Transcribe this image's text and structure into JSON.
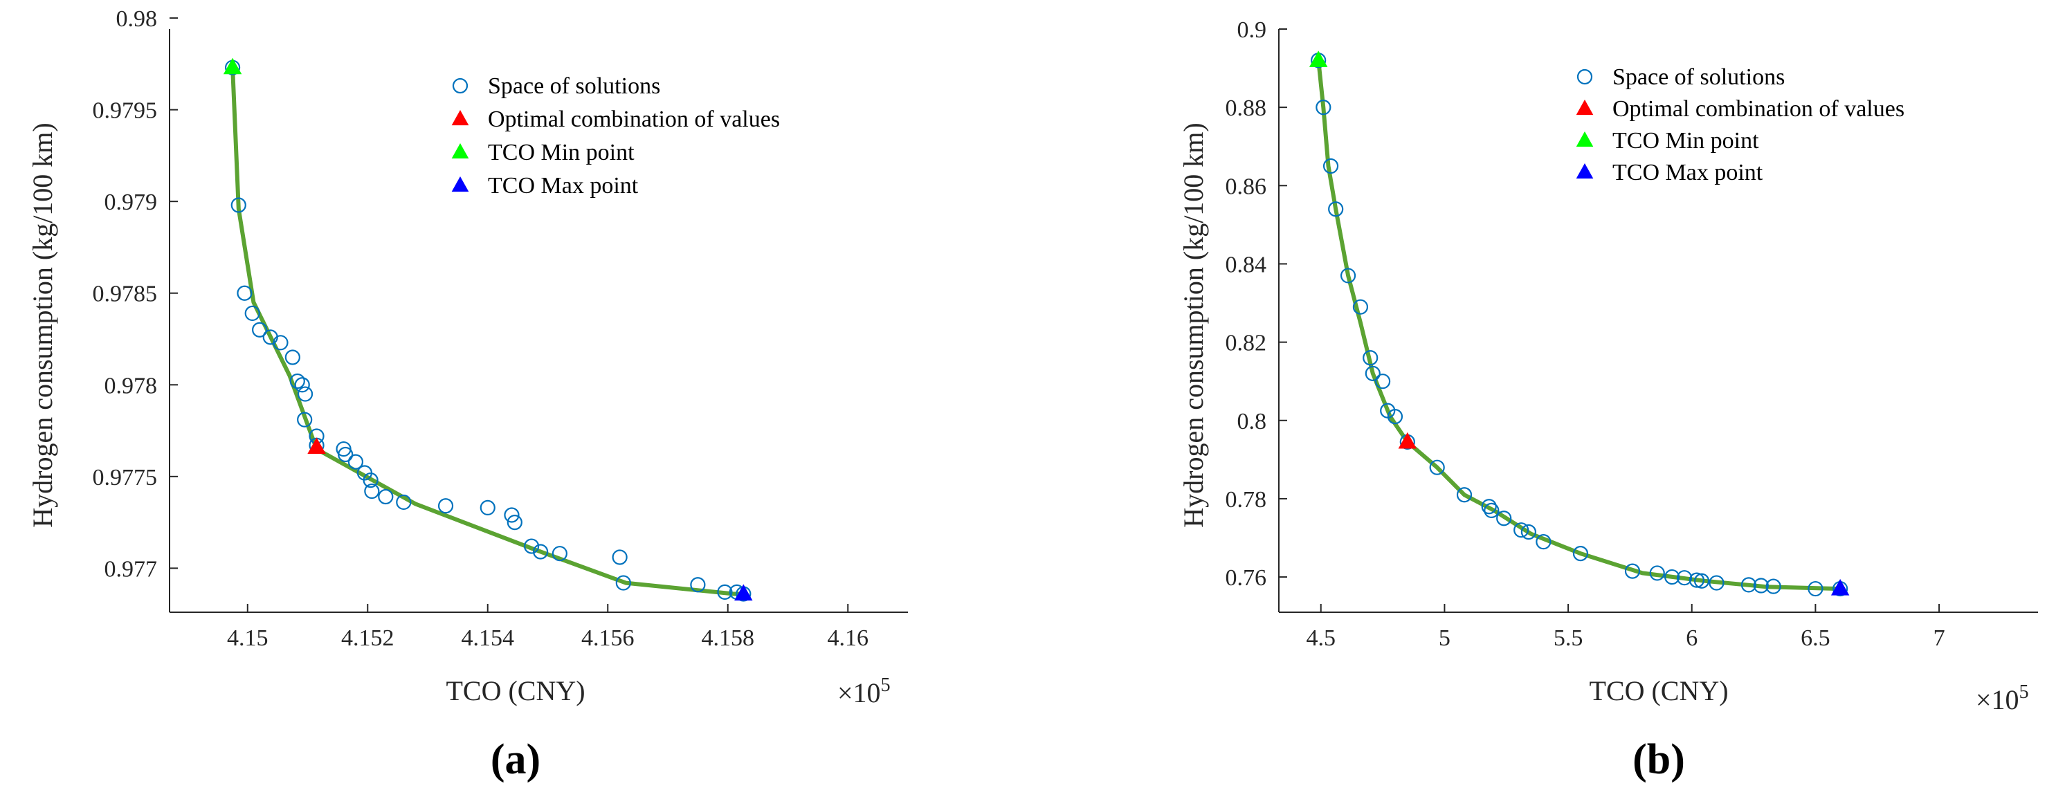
{
  "chart_data": [
    {
      "type": "scatter",
      "panel_label": "(a)",
      "xlabel": "TCO (CNY)",
      "ylabel": "Hydrogen consumption (kg/100 km)",
      "x_multiplier": "×10",
      "x_exponent": "5",
      "xlim": [
        4.1487,
        4.161
      ],
      "ylim": [
        0.97676,
        0.97994
      ],
      "xticks": [
        4.15,
        4.152,
        4.154,
        4.156,
        4.158,
        4.16
      ],
      "xtick_labels": [
        "4.15",
        "4.152",
        "4.154",
        "4.156",
        "4.158",
        "4.16"
      ],
      "yticks": [
        0.977,
        0.9775,
        0.978,
        0.9785,
        0.979,
        0.9795,
        0.98
      ],
      "ytick_labels": [
        "0.977",
        "0.9775",
        "0.978",
        "0.9785",
        "0.979",
        "0.9795",
        "0.98"
      ],
      "legend": {
        "position": "top-right",
        "entries": [
          {
            "label": "Space of solutions",
            "marker": "circle",
            "color": "#0072BD"
          },
          {
            "label": "Optimal combination of values",
            "marker": "triangle",
            "color": "#FF0000"
          },
          {
            "label": "TCO Min point",
            "marker": "triangle",
            "color": "#00FF00"
          },
          {
            "label": "TCO Max point",
            "marker": "triangle",
            "color": "#0000FF"
          }
        ]
      },
      "front_color": "#5BA332",
      "front": [
        [
          4.14975,
          0.97973
        ],
        [
          4.14985,
          0.97896
        ],
        [
          4.1501,
          0.97845
        ],
        [
          4.1507,
          0.97805
        ],
        [
          4.15115,
          0.97765
        ],
        [
          4.1528,
          0.97735
        ],
        [
          4.1548,
          0.9771
        ],
        [
          4.1563,
          0.97692
        ],
        [
          4.1581,
          0.97686
        ],
        [
          4.15826,
          0.97686
        ]
      ],
      "solutions": [
        [
          4.14975,
          0.97973
        ],
        [
          4.14985,
          0.97898
        ],
        [
          4.14995,
          0.9785
        ],
        [
          4.15008,
          0.97839
        ],
        [
          4.1502,
          0.9783
        ],
        [
          4.15038,
          0.97826
        ],
        [
          4.15055,
          0.97823
        ],
        [
          4.15075,
          0.97815
        ],
        [
          4.15083,
          0.97802
        ],
        [
          4.15091,
          0.978
        ],
        [
          4.15096,
          0.97795
        ],
        [
          4.15095,
          0.97781
        ],
        [
          4.15115,
          0.97772
        ],
        [
          4.15115,
          0.97767
        ],
        [
          4.1516,
          0.97765
        ],
        [
          4.15163,
          0.97762
        ],
        [
          4.1518,
          0.97758
        ],
        [
          4.15195,
          0.97752
        ],
        [
          4.15205,
          0.97748
        ],
        [
          4.15207,
          0.97742
        ],
        [
          4.1523,
          0.97739
        ],
        [
          4.1526,
          0.97736
        ],
        [
          4.1533,
          0.97734
        ],
        [
          4.154,
          0.97733
        ],
        [
          4.1544,
          0.97729
        ],
        [
          4.15445,
          0.97725
        ],
        [
          4.15473,
          0.97712
        ],
        [
          4.15488,
          0.97709
        ],
        [
          4.1552,
          0.97708
        ],
        [
          4.1562,
          0.97706
        ],
        [
          4.15626,
          0.97692
        ],
        [
          4.1575,
          0.97691
        ],
        [
          4.15795,
          0.97687
        ],
        [
          4.15815,
          0.97687
        ],
        [
          4.15826,
          0.97686
        ]
      ],
      "optimal": [
        4.15115,
        0.97766
      ],
      "tco_min": [
        4.14975,
        0.97973
      ],
      "tco_max": [
        4.15826,
        0.97686
      ]
    },
    {
      "type": "scatter",
      "panel_label": "(b)",
      "xlabel": "TCO (CNY)",
      "ylabel": "Hydrogen consumption (kg/100 km)",
      "x_multiplier": "×10",
      "x_exponent": "5",
      "xlim": [
        4.33,
        7.4
      ],
      "ylim": [
        0.751,
        0.9
      ],
      "xticks": [
        4.5,
        5,
        5.5,
        6,
        6.5,
        7
      ],
      "xtick_labels": [
        "4.5",
        "5",
        "5.5",
        "6",
        "6.5",
        "7"
      ],
      "yticks": [
        0.76,
        0.78,
        0.8,
        0.82,
        0.84,
        0.86,
        0.88,
        0.9
      ],
      "ytick_labels": [
        "0.76",
        "0.78",
        "0.8",
        "0.82",
        "0.84",
        "0.86",
        "0.88",
        "0.9"
      ],
      "legend": {
        "position": "top-right",
        "entries": [
          {
            "label": "Space of solutions",
            "marker": "circle",
            "color": "#0072BD"
          },
          {
            "label": "Optimal combination of values",
            "marker": "triangle",
            "color": "#FF0000"
          },
          {
            "label": "TCO Min point",
            "marker": "triangle",
            "color": "#00FF00"
          },
          {
            "label": "TCO Max point",
            "marker": "triangle",
            "color": "#0000FF"
          }
        ]
      },
      "front_color": "#5BA332",
      "front": [
        [
          4.49,
          0.892
        ],
        [
          4.51,
          0.88
        ],
        [
          4.53,
          0.865
        ],
        [
          4.56,
          0.854
        ],
        [
          4.61,
          0.837
        ],
        [
          4.66,
          0.825
        ],
        [
          4.71,
          0.812
        ],
        [
          4.78,
          0.801
        ],
        [
          4.85,
          0.7945
        ],
        [
          4.97,
          0.788
        ],
        [
          5.08,
          0.781
        ],
        [
          5.2,
          0.777
        ],
        [
          5.35,
          0.771
        ],
        [
          5.55,
          0.766
        ],
        [
          5.8,
          0.761
        ],
        [
          6.05,
          0.759
        ],
        [
          6.3,
          0.7575
        ],
        [
          6.6,
          0.757
        ]
      ],
      "solutions": [
        [
          4.49,
          0.892
        ],
        [
          4.51,
          0.88
        ],
        [
          4.54,
          0.865
        ],
        [
          4.56,
          0.854
        ],
        [
          4.61,
          0.837
        ],
        [
          4.66,
          0.829
        ],
        [
          4.7,
          0.816
        ],
        [
          4.71,
          0.812
        ],
        [
          4.75,
          0.81
        ],
        [
          4.77,
          0.8025
        ],
        [
          4.8,
          0.801
        ],
        [
          4.85,
          0.7945
        ],
        [
          4.97,
          0.788
        ],
        [
          5.08,
          0.781
        ],
        [
          5.18,
          0.778
        ],
        [
          5.19,
          0.777
        ],
        [
          5.24,
          0.775
        ],
        [
          5.31,
          0.772
        ],
        [
          5.34,
          0.7715
        ],
        [
          5.4,
          0.769
        ],
        [
          5.55,
          0.766
        ],
        [
          5.76,
          0.7615
        ],
        [
          5.86,
          0.761
        ],
        [
          5.92,
          0.76
        ],
        [
          5.97,
          0.7598
        ],
        [
          6.02,
          0.7592
        ],
        [
          6.04,
          0.759
        ],
        [
          6.1,
          0.7585
        ],
        [
          6.23,
          0.758
        ],
        [
          6.28,
          0.7578
        ],
        [
          6.33,
          0.7576
        ],
        [
          6.5,
          0.757
        ],
        [
          6.6,
          0.757
        ]
      ],
      "optimal": [
        4.85,
        0.7945
      ],
      "tco_min": [
        4.49,
        0.892
      ],
      "tco_max": [
        6.6,
        0.757
      ]
    }
  ]
}
